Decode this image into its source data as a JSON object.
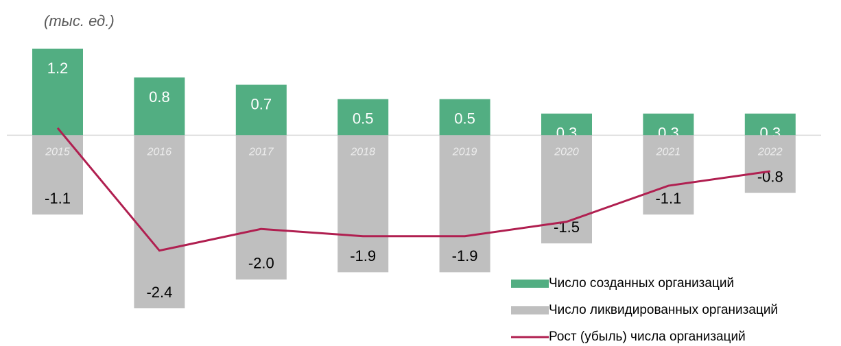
{
  "chart_data": {
    "type": "bar_line",
    "subtitle": "(тыс. ед.)",
    "categories": [
      "2015",
      "2016",
      "2017",
      "2018",
      "2019",
      "2020",
      "2021",
      "2022"
    ],
    "series": [
      {
        "name": "Число созданных организаций",
        "type": "bar",
        "color": "#52ae82",
        "values": [
          1.2,
          0.8,
          0.7,
          0.5,
          0.5,
          0.3,
          0.3,
          0.3
        ],
        "value_labels": [
          "1.2",
          "0.8",
          "0.7",
          "0.5",
          "0.5",
          "0.3",
          "0.3",
          "0.3"
        ]
      },
      {
        "name": "Число ликвидированных организаций",
        "type": "bar",
        "color": "#bfbfbf",
        "values": [
          -1.1,
          -2.4,
          -2.0,
          -1.9,
          -1.9,
          -1.5,
          -1.1,
          -0.8
        ],
        "value_labels": [
          "-1.1",
          "-2.4",
          "-2.0",
          "-1.9",
          "-1.9",
          "-1.5",
          "-1.1",
          "-0.8"
        ]
      },
      {
        "name": "Рост (убыль) числа организаций",
        "type": "line",
        "color": "#b01f50",
        "values": [
          0.1,
          -1.6,
          -1.3,
          -1.4,
          -1.4,
          -1.2,
          -0.7,
          -0.5
        ]
      }
    ],
    "legend": "lower right"
  }
}
